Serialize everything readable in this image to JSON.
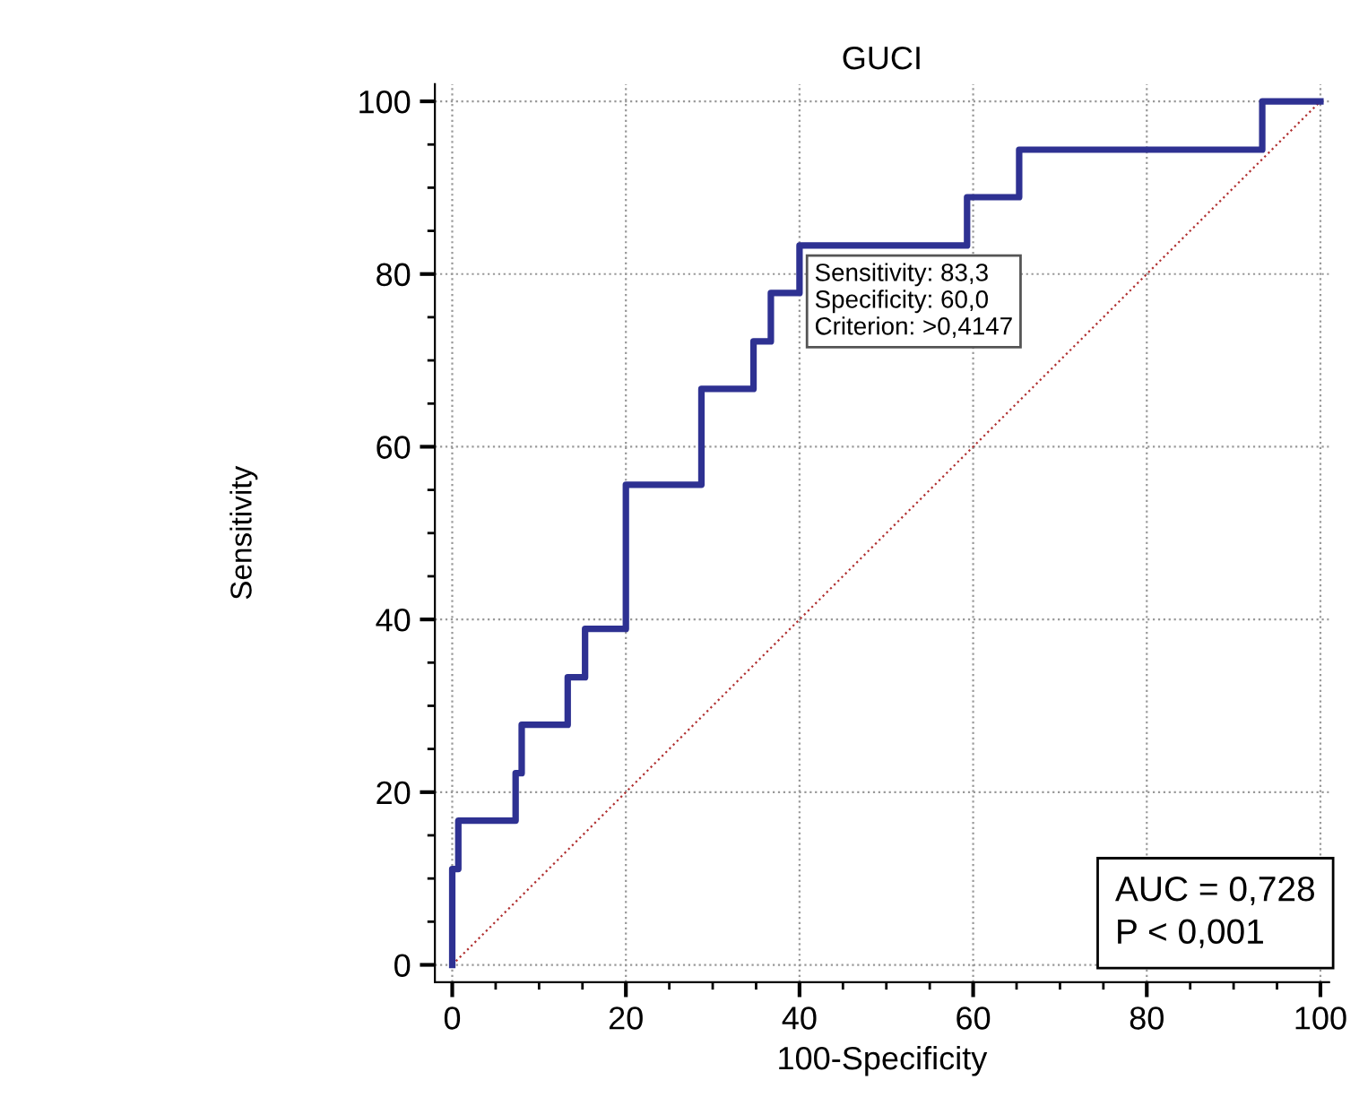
{
  "chart_data": {
    "type": "step",
    "title": "GUCI",
    "xlabel": "100-Specificity",
    "ylabel": "Sensitivity",
    "series": [
      {
        "color": "#2e3192",
        "x": [
          0,
          0,
          0.7,
          7.3,
          8,
          13.3,
          15.3,
          20,
          28.7,
          34.7,
          36.7,
          40,
          59.3,
          65.3,
          93.3,
          100
        ],
        "values": [
          0,
          11.1,
          16.7,
          22.2,
          27.8,
          33.3,
          38.9,
          55.6,
          66.7,
          72.2,
          77.8,
          83.3,
          88.9,
          94.4,
          100,
          100
        ]
      },
      {
        "type": "line",
        "color": "#b03030",
        "line_style": "dotted",
        "x": [
          0,
          100
        ],
        "values": [
          0,
          100
        ]
      }
    ],
    "annotations": [
      {
        "text": "Sensitivity: 83,3\nSpecificity: 60,0\nCriterion: >0,4147",
        "x": 40,
        "y": 83.3
      },
      "AUC = 0,728\nP < 0,001"
    ],
    "xlim": [
      -2,
      101
    ],
    "ylim": [
      -2,
      102
    ],
    "xticks": [
      0,
      20,
      40,
      60,
      80,
      100
    ],
    "yticks": [
      0,
      20,
      40,
      60,
      80,
      100
    ],
    "grid": true
  }
}
